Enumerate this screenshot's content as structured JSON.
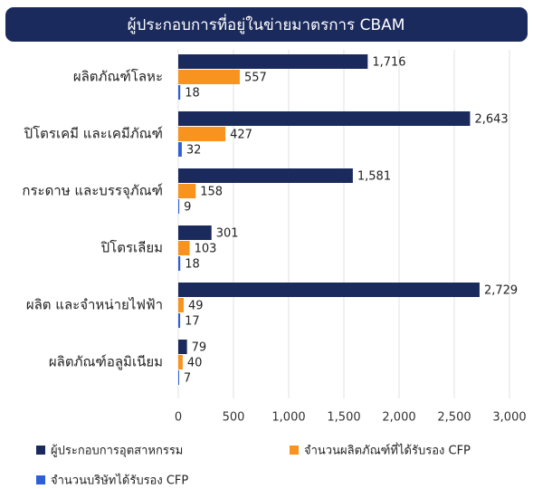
{
  "chart_data": {
    "type": "hbar",
    "title": "ผู้ประกอบการที่อยู่ในข่ายมาตรการ CBAM",
    "categories": [
      "ผลิตภัณฑ์โลหะ",
      "ปิโตรเคมี และเคมีภัณฑ์",
      "กระดาษ และบรรจุภัณฑ์",
      "ปิโตรเลียม",
      "ผลิต และจำหน่ายไฟฟ้า",
      "ผลิตภัณฑ์อลูมิเนียม"
    ],
    "series": [
      {
        "name": "ผู้ประกอบการอุตสาหกรรม",
        "color": "#1b2a5c",
        "values": [
          1716,
          2643,
          1581,
          301,
          2729,
          79
        ],
        "value_labels": [
          "1,716",
          "2,643",
          "1,581",
          "301",
          "2,729",
          "79"
        ]
      },
      {
        "name": "จำนวนผลิตภัณฑ์ที่ได้รับรอง CFP",
        "color": "#f7931e",
        "values": [
          557,
          427,
          158,
          103,
          49,
          40
        ]
      },
      {
        "name": "จำนวนบริษัทได้รับรอง CFP",
        "color": "#2f5fd8",
        "values": [
          18,
          32,
          9,
          18,
          17,
          7
        ]
      }
    ],
    "xlim": [
      0,
      3000
    ],
    "xticks": [
      0,
      500,
      {
        "value": 1000,
        "label": "1,000"
      },
      {
        "value": 1500,
        "label": "1,500"
      },
      {
        "value": 2000,
        "label": "2,000"
      },
      {
        "value": 2500,
        "label": "2,500"
      },
      {
        "value": 3000,
        "label": "3,000"
      }
    ],
    "grid": true,
    "legend": "bottom"
  }
}
